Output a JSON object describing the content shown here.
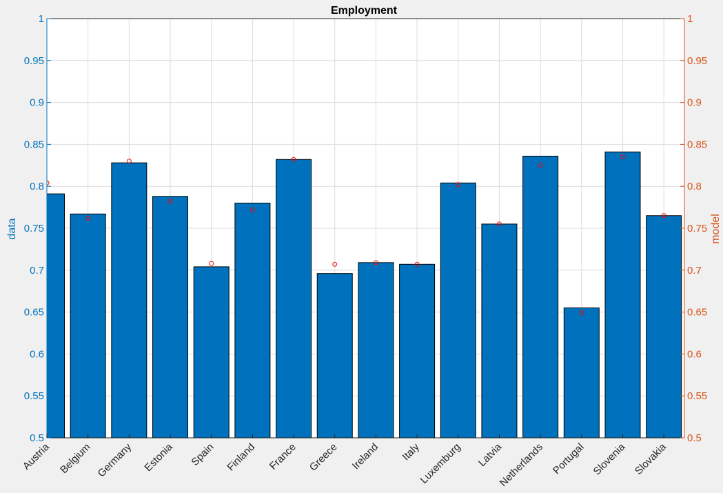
{
  "chart_data": {
    "type": "bar",
    "title": "Employment",
    "xlabel": "",
    "ylabel": "data",
    "ylabel_right": "model",
    "ylim": [
      0.5,
      1.0
    ],
    "ylim_right": [
      0.5,
      1.0
    ],
    "yticks": [
      "0.5",
      "0.55",
      "0.6",
      "0.65",
      "0.7",
      "0.75",
      "0.8",
      "0.85",
      "0.9",
      "0.95",
      "1"
    ],
    "grid": true,
    "categories": [
      "Austria",
      "Belgium",
      "Germany",
      "Estonia",
      "Spain",
      "Finland",
      "France",
      "Greece",
      "Ireland",
      "Italy",
      "Luxemburg",
      "Latvia",
      "Netherlands",
      "Portugal",
      "Slovenia",
      "Slovakia"
    ],
    "series": [
      {
        "name": "data",
        "type": "bar",
        "axis": "left",
        "values": [
          0.791,
          0.767,
          0.828,
          0.788,
          0.704,
          0.78,
          0.832,
          0.696,
          0.709,
          0.707,
          0.804,
          0.755,
          0.836,
          0.655,
          0.841,
          0.765
        ]
      },
      {
        "name": "model",
        "type": "scatter",
        "axis": "right",
        "values": [
          0.804,
          0.762,
          0.83,
          0.782,
          0.708,
          0.772,
          0.832,
          0.707,
          0.709,
          0.707,
          0.802,
          0.755,
          0.825,
          0.649,
          0.835,
          0.765
        ]
      }
    ],
    "colors": {
      "bar_fill": "#0072BD",
      "bar_edge": "#000000",
      "left_axis": "#0072BD",
      "right_axis": "#D95319",
      "marker": "#FF0000",
      "grid": "#DCDCDC",
      "plot_background": "#FFFFFF",
      "figure_background": "#F0F0F0"
    }
  }
}
